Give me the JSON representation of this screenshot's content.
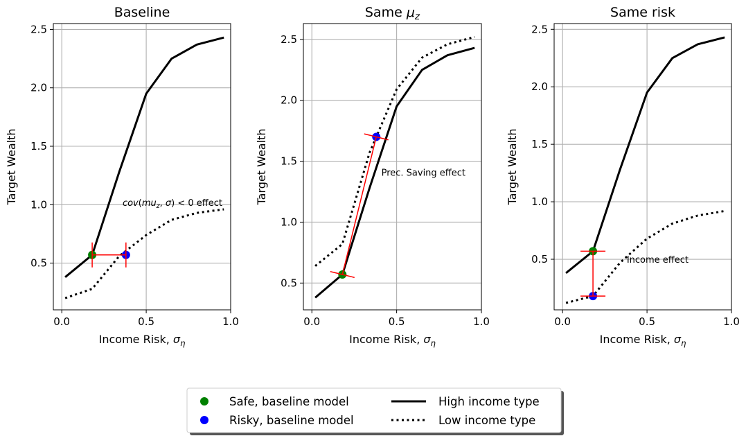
{
  "chart_data": [
    {
      "type": "line",
      "title": "Baseline",
      "xlabel": "Income Risk, σ_η",
      "ylabel": "Target Wealth",
      "xlim": [
        -0.05,
        1.0
      ],
      "ylim": [
        0.1,
        2.55
      ],
      "xticks": [
        "0.0",
        "0.5",
        "1.0"
      ],
      "yticks": [
        "0.5",
        "1.0",
        "1.5",
        "2.0",
        "2.5"
      ],
      "grid": true,
      "series": [
        {
          "name": "High income type",
          "style": "solid",
          "x": [
            0.02,
            0.18,
            0.34,
            0.5,
            0.65,
            0.8,
            0.96
          ],
          "y": [
            0.38,
            0.57,
            1.28,
            1.95,
            2.25,
            2.37,
            2.43
          ]
        },
        {
          "name": "Low income type",
          "style": "dotted",
          "x": [
            0.02,
            0.18,
            0.34,
            0.5,
            0.65,
            0.8,
            0.96
          ],
          "y": [
            0.2,
            0.28,
            0.56,
            0.74,
            0.87,
            0.93,
            0.96
          ]
        }
      ],
      "points": [
        {
          "name": "Safe, baseline model",
          "x": 0.18,
          "y": 0.57
        },
        {
          "name": "Risky, baseline model",
          "x": 0.38,
          "y": 0.57
        }
      ],
      "arrow": {
        "from": [
          0.18,
          0.57
        ],
        "to": [
          0.38,
          0.57
        ]
      },
      "annotation": {
        "text": "cov(mu_z, σ) < 0 effect",
        "x": 0.36,
        "y": 0.99
      }
    },
    {
      "type": "line",
      "title": "Same μ_z",
      "xlabel": "Income Risk, σ_η",
      "ylabel": "Target Wealth",
      "xlim": [
        -0.05,
        1.0
      ],
      "ylim": [
        0.28,
        2.63
      ],
      "xticks": [
        "0.0",
        "0.5",
        "1.0"
      ],
      "yticks": [
        "0.5",
        "1.0",
        "1.5",
        "2.0",
        "2.5"
      ],
      "grid": true,
      "series": [
        {
          "name": "High income type",
          "style": "solid",
          "x": [
            0.02,
            0.18,
            0.34,
            0.5,
            0.65,
            0.8,
            0.96
          ],
          "y": [
            0.38,
            0.57,
            1.28,
            1.95,
            2.25,
            2.37,
            2.43
          ]
        },
        {
          "name": "Low income type",
          "style": "dotted",
          "x": [
            0.02,
            0.18,
            0.34,
            0.5,
            0.65,
            0.8,
            0.96
          ],
          "y": [
            0.64,
            0.82,
            1.57,
            2.09,
            2.35,
            2.46,
            2.52
          ]
        }
      ],
      "points": [
        {
          "name": "Safe, baseline model",
          "x": 0.18,
          "y": 0.57
        },
        {
          "name": "Risky, baseline model",
          "x": 0.38,
          "y": 1.7
        }
      ],
      "arrow": {
        "from": [
          0.18,
          0.57
        ],
        "to": [
          0.38,
          1.7
        ]
      },
      "annotation": {
        "text": "Prec. Saving effect",
        "x": 0.41,
        "y": 1.38
      }
    },
    {
      "type": "line",
      "title": "Same risk",
      "xlabel": "Income Risk, σ_η",
      "ylabel": "Target Wealth",
      "xlim": [
        -0.05,
        1.0
      ],
      "ylim": [
        0.06,
        2.55
      ],
      "xticks": [
        "0.0",
        "0.5",
        "1.0"
      ],
      "yticks": [
        "0.5",
        "1.0",
        "1.5",
        "2.0",
        "2.5"
      ],
      "grid": true,
      "series": [
        {
          "name": "High income type",
          "style": "solid",
          "x": [
            0.02,
            0.18,
            0.34,
            0.5,
            0.65,
            0.8,
            0.96
          ],
          "y": [
            0.38,
            0.57,
            1.28,
            1.95,
            2.25,
            2.37,
            2.43
          ]
        },
        {
          "name": "Low income type",
          "style": "dotted",
          "x": [
            0.02,
            0.18,
            0.34,
            0.5,
            0.65,
            0.8,
            0.96
          ],
          "y": [
            0.12,
            0.18,
            0.47,
            0.68,
            0.81,
            0.88,
            0.92
          ]
        }
      ],
      "points": [
        {
          "name": "Safe, baseline model",
          "x": 0.18,
          "y": 0.57
        },
        {
          "name": "Risky, baseline model",
          "x": 0.18,
          "y": 0.18
        }
      ],
      "arrow": {
        "from": [
          0.18,
          0.57
        ],
        "to": [
          0.18,
          0.18
        ]
      },
      "annotation": {
        "text": "Income effect",
        "x": 0.38,
        "y": 0.47
      }
    }
  ],
  "legend": {
    "items": [
      {
        "label": "Safe, baseline model",
        "kind": "marker",
        "color": "#008000"
      },
      {
        "label": "High income type",
        "kind": "solid",
        "color": "#000000"
      },
      {
        "label": "Risky, baseline model",
        "kind": "marker",
        "color": "#0000ff"
      },
      {
        "label": "Low income type",
        "kind": "dotted",
        "color": "#000000"
      }
    ]
  },
  "colors": {
    "grid": "#b0b0b0",
    "arrow": "#ff0000",
    "safe": "#008000",
    "risky": "#0000ff"
  }
}
